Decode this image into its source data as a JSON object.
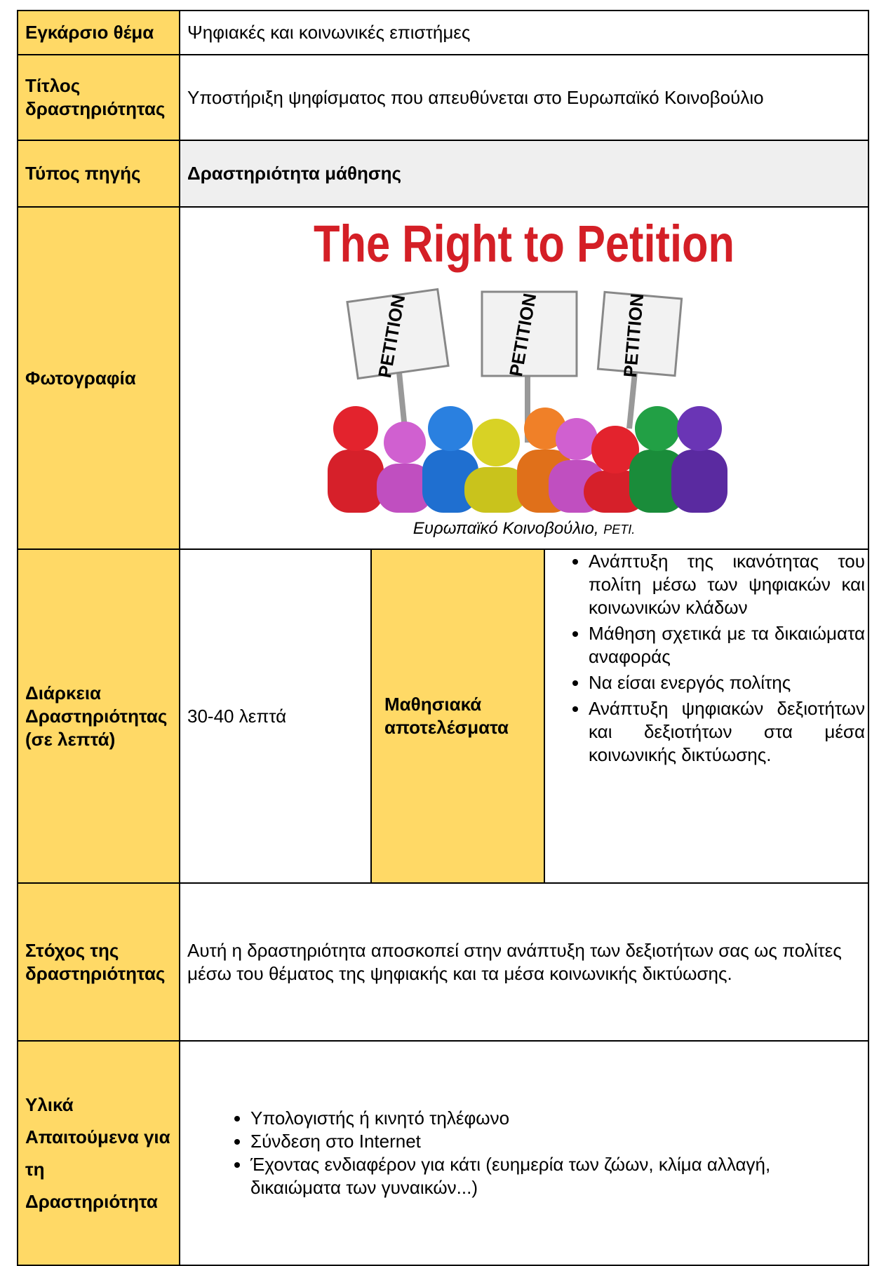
{
  "rows": {
    "theme": {
      "label": "Εγκάρσιο θέμα",
      "value": "Ψηφιακές και κοινωνικές επιστήμες"
    },
    "title": {
      "label": "Τίτλος δραστηριότητας",
      "value": "Υποστήριξη ψηφίσματος που απευθύνεται στο Ευρωπαϊκό Κοινοβούλιο"
    },
    "source_type": {
      "label": "Τύπος πηγής",
      "value": "Δραστηριότητα μάθησης"
    },
    "photo": {
      "label": "Φωτογραφία",
      "image_title": "The Right to Petition",
      "signs": [
        "PETITION",
        "PETITION",
        "PETITION"
      ],
      "caption_source": "Ευρωπαϊκό Κοινοβούλιο,",
      "caption_code": "PETI."
    },
    "duration": {
      "label": "Διάρκεια Δραστηριότητας (σε λεπτά)",
      "value": "30-40 λεπτά"
    },
    "outcomes": {
      "label": "Μαθησιακά αποτελέσματα",
      "items": [
        "Ανάπτυξη της ικανότητας του πολίτη μέσω των ψηφιακών και κοινωνικών κλάδων",
        "Μάθηση σχετικά με τα δικαιώματα αναφοράς",
        "Να είσαι ενεργός πολίτης",
        "Ανάπτυξη ψηφιακών δεξιοτήτων και δεξιοτήτων στα μέσα κοινωνικής δικτύωσης."
      ]
    },
    "goal": {
      "label": "Στόχος της δραστηριότητας",
      "value": "Αυτή η δραστηριότητα αποσκοπεί στην ανάπτυξη των δεξιοτήτων σας ως πολίτες μέσω του θέματος της ψηφιακής και τα μέσα κοινωνικής δικτύωσης."
    },
    "materials": {
      "label": "Υλικά Απαιτούμενα για τη Δραστηριότητα",
      "items": [
        "Υπολογιστής ή κινητό τηλέφωνο",
        "Σύνδεση στο Internet",
        "Έχοντας ενδιαφέρον για κάτι (ευημερία των ζώων, κλίμα αλλαγή, δικαιώματα των γυναικών...)"
      ]
    }
  }
}
